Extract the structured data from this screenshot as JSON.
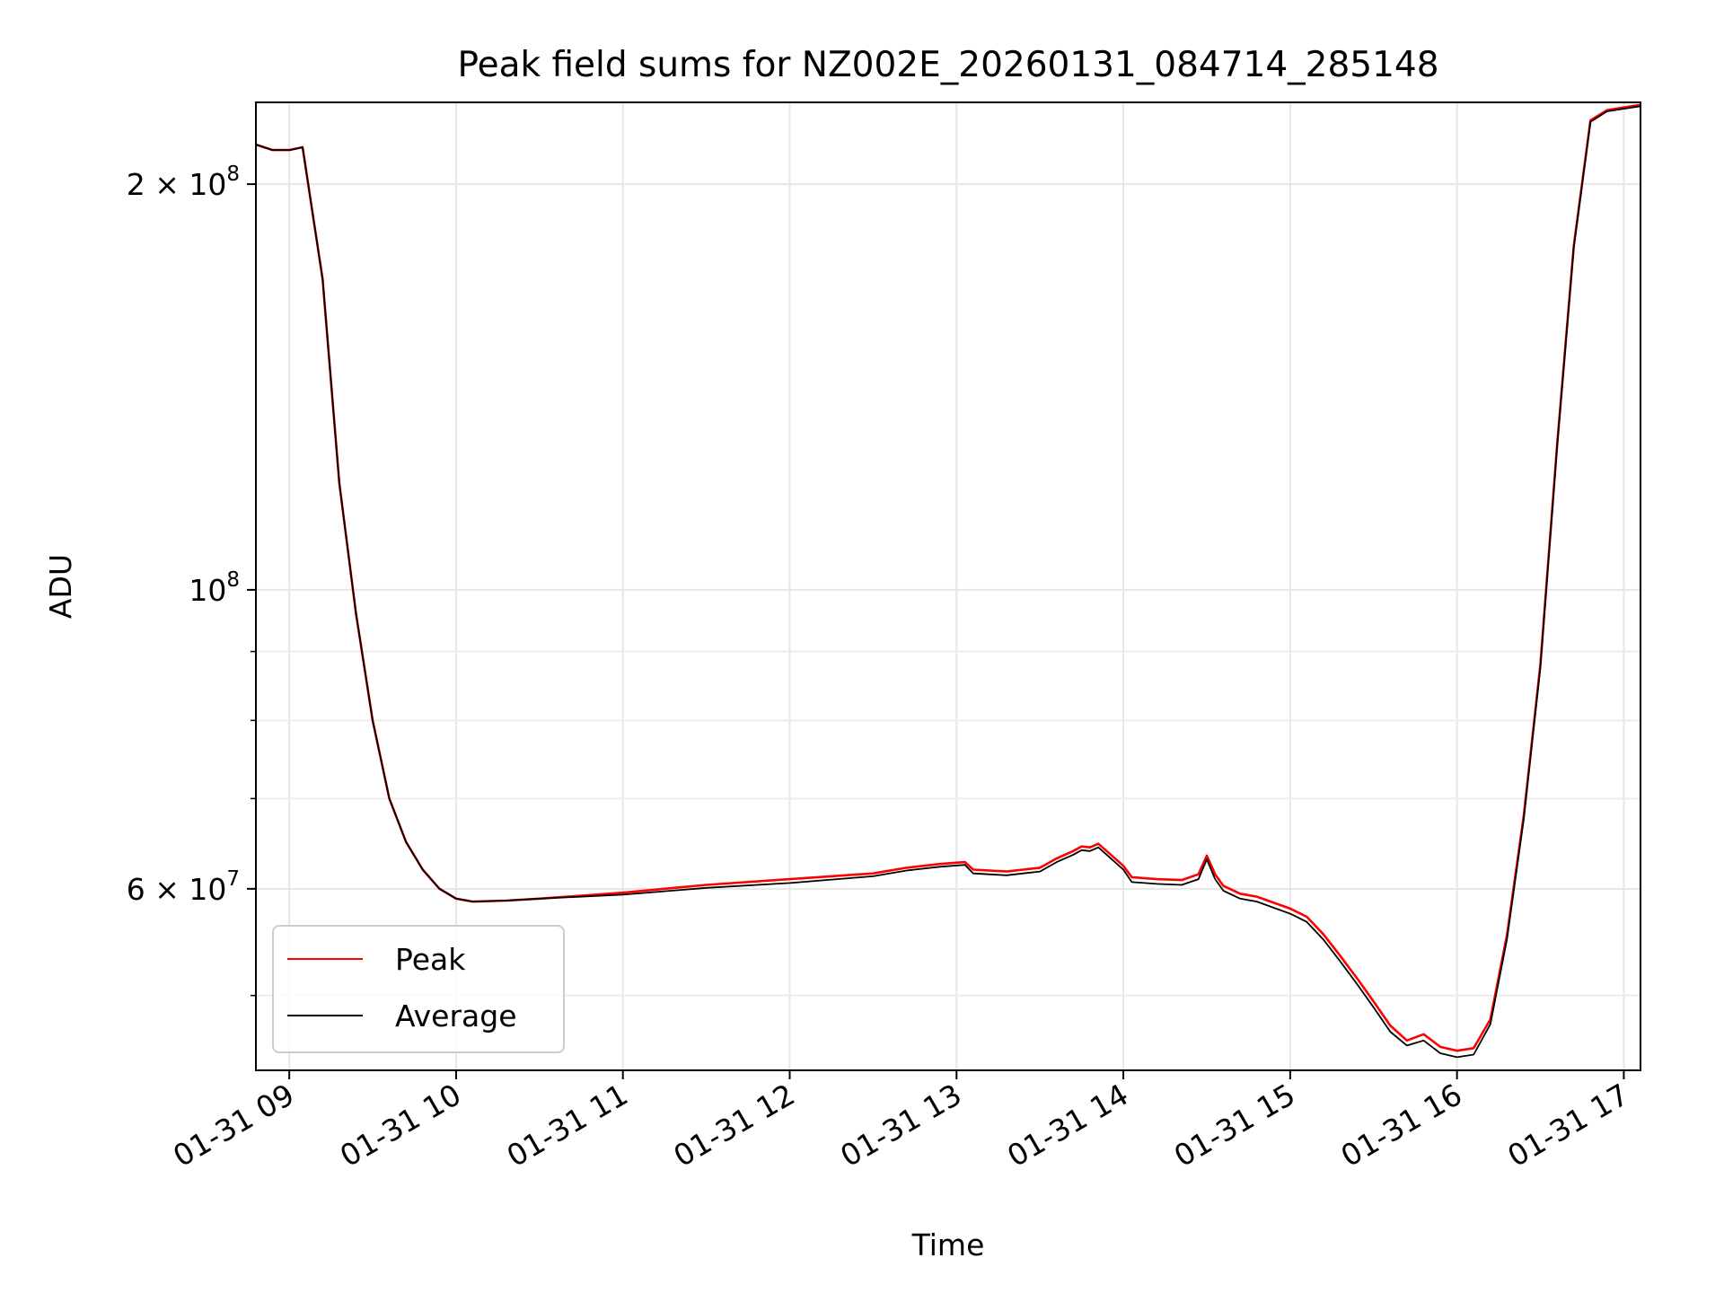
{
  "chart_data": {
    "type": "line",
    "title": "Peak field sums for NZ002E_20260131_084714_285148",
    "xlabel": "Time",
    "ylabel": "ADU",
    "yscale": "log",
    "xlim": [
      8.8,
      17.1
    ],
    "ylim": [
      44000000,
      230000000
    ],
    "grid": true,
    "legend_position": "lower-left",
    "x_ticks": [
      {
        "value": 9,
        "label": "01-31 09"
      },
      {
        "value": 10,
        "label": "01-31 10"
      },
      {
        "value": 11,
        "label": "01-31 11"
      },
      {
        "value": 12,
        "label": "01-31 12"
      },
      {
        "value": 13,
        "label": "01-31 13"
      },
      {
        "value": 14,
        "label": "01-31 14"
      },
      {
        "value": 15,
        "label": "01-31 15"
      },
      {
        "value": 16,
        "label": "01-31 16"
      },
      {
        "value": 17,
        "label": "01-31 17"
      }
    ],
    "y_major_ticks": [
      {
        "value": 200000000,
        "mantissa": "2",
        "times": "×",
        "base": "10",
        "exp": "8"
      },
      {
        "value": 100000000,
        "mantissa": "",
        "times": "",
        "base": "10",
        "exp": "8"
      },
      {
        "value": 60000000,
        "mantissa": "6",
        "times": "×",
        "base": "10",
        "exp": "7"
      }
    ],
    "y_minor_ticks": [
      50000000,
      70000000,
      80000000,
      90000000
    ],
    "series": [
      {
        "name": "Peak",
        "color": "#ff0000",
        "x": [
          8.8,
          8.9,
          9.0,
          9.08,
          9.2,
          9.3,
          9.4,
          9.5,
          9.6,
          9.7,
          9.8,
          9.9,
          10.0,
          10.1,
          10.3,
          10.5,
          11.0,
          11.5,
          12.0,
          12.5,
          12.7,
          12.9,
          13.05,
          13.1,
          13.3,
          13.5,
          13.6,
          13.7,
          13.75,
          13.8,
          13.85,
          13.9,
          14.0,
          14.05,
          14.2,
          14.35,
          14.45,
          14.5,
          14.55,
          14.6,
          14.7,
          14.8,
          15.0,
          15.1,
          15.2,
          15.3,
          15.4,
          15.5,
          15.6,
          15.7,
          15.8,
          15.9,
          16.0,
          16.1,
          16.2,
          16.3,
          16.4,
          16.5,
          16.6,
          16.7,
          16.8,
          16.9,
          17.0,
          17.1
        ],
        "values": [
          214000000,
          212000000,
          212000000,
          213000000,
          170000000,
          120000000,
          96000000,
          80000000,
          70000000,
          65000000,
          62000000,
          60000000,
          59000000,
          58700000,
          58800000,
          59000000,
          59600000,
          60400000,
          61000000,
          61600000,
          62200000,
          62600000,
          62800000,
          62000000,
          61800000,
          62200000,
          63200000,
          64000000,
          64500000,
          64400000,
          64800000,
          64000000,
          62400000,
          61200000,
          61000000,
          60900000,
          61500000,
          63500000,
          61500000,
          60300000,
          59500000,
          59200000,
          58000000,
          57200000,
          55500000,
          53500000,
          51500000,
          49500000,
          47500000,
          46300000,
          46800000,
          45800000,
          45500000,
          45700000,
          48000000,
          55500000,
          68000000,
          88000000,
          128000000,
          180000000,
          223000000,
          227000000,
          228000000,
          229000000
        ]
      },
      {
        "name": "Average",
        "color": "#000000",
        "x": [
          8.8,
          8.9,
          9.0,
          9.08,
          9.2,
          9.3,
          9.4,
          9.5,
          9.6,
          9.7,
          9.8,
          9.9,
          10.0,
          10.1,
          10.3,
          10.5,
          11.0,
          11.5,
          12.0,
          12.5,
          12.7,
          12.9,
          13.05,
          13.1,
          13.3,
          13.5,
          13.6,
          13.7,
          13.75,
          13.8,
          13.85,
          13.9,
          14.0,
          14.05,
          14.2,
          14.35,
          14.45,
          14.5,
          14.55,
          14.6,
          14.7,
          14.8,
          15.0,
          15.1,
          15.2,
          15.3,
          15.4,
          15.5,
          15.6,
          15.7,
          15.8,
          15.9,
          16.0,
          16.1,
          16.2,
          16.3,
          16.4,
          16.5,
          16.6,
          16.7,
          16.8,
          16.9,
          17.0,
          17.1
        ],
        "values": [
          214000000,
          212000000,
          212000000,
          213000000,
          170000000,
          120000000,
          96000000,
          80000000,
          70000000,
          65000000,
          62000000,
          60000000,
          59000000,
          58700000,
          58800000,
          59000000,
          59400000,
          60100000,
          60600000,
          61300000,
          61900000,
          62300000,
          62500000,
          61600000,
          61400000,
          61800000,
          62800000,
          63600000,
          64100000,
          64000000,
          64400000,
          63600000,
          62000000,
          60700000,
          60500000,
          60400000,
          61000000,
          63100000,
          61000000,
          59800000,
          59000000,
          58700000,
          57500000,
          56700000,
          55000000,
          53000000,
          51000000,
          49000000,
          47000000,
          45900000,
          46300000,
          45300000,
          45000000,
          45200000,
          47600000,
          55100000,
          67600000,
          87600000,
          127500000,
          179500000,
          222500000,
          226500000,
          227500000,
          228500000
        ]
      }
    ]
  }
}
